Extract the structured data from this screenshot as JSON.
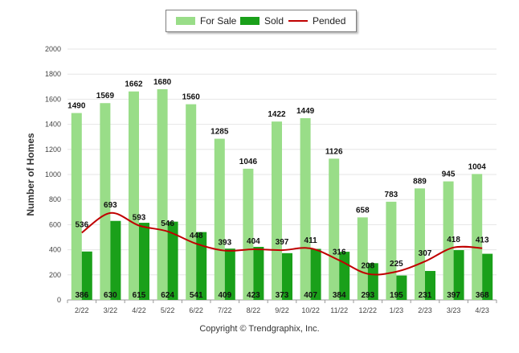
{
  "chart_data": {
    "type": "bar",
    "ylabel": "Number of Homes",
    "ylim": [
      0,
      2000
    ],
    "yticks": [
      0,
      200,
      400,
      600,
      800,
      1000,
      1200,
      1400,
      1600,
      1800,
      2000
    ],
    "categories": [
      "2/22",
      "3/22",
      "4/22",
      "5/22",
      "6/22",
      "7/22",
      "8/22",
      "9/22",
      "10/22",
      "11/22",
      "12/22",
      "1/23",
      "2/23",
      "3/23",
      "4/23"
    ],
    "series": [
      {
        "name": "For Sale",
        "type": "bar",
        "color": "#99dd88",
        "values": [
          1490,
          1569,
          1662,
          1680,
          1560,
          1285,
          1046,
          1422,
          1449,
          1126,
          658,
          783,
          889,
          945,
          1004
        ]
      },
      {
        "name": "Sold",
        "type": "bar",
        "color": "#1aa01a",
        "values": [
          386,
          630,
          615,
          624,
          541,
          409,
          423,
          373,
          407,
          384,
          293,
          195,
          231,
          397,
          368
        ]
      },
      {
        "name": "Pended",
        "type": "line",
        "color": "#c00000",
        "values": [
          536,
          693,
          593,
          546,
          448,
          393,
          404,
          397,
          411,
          316,
          208,
          225,
          307,
          418,
          413
        ]
      }
    ],
    "legend_position": "top-center",
    "grid": true
  },
  "footer": {
    "copyright": "Copyright © Trendgraphix, Inc."
  }
}
